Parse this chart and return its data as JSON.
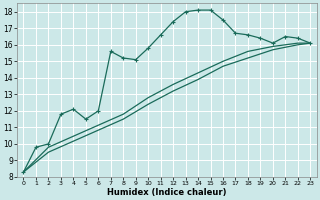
{
  "xlabel": "Humidex (Indice chaleur)",
  "bg_color": "#cce8e8",
  "grid_color": "#b0d8d8",
  "line_color": "#1a6b5a",
  "xlim": [
    -0.5,
    23.5
  ],
  "ylim": [
    8,
    18.5
  ],
  "yticks": [
    8,
    9,
    10,
    11,
    12,
    13,
    14,
    15,
    16,
    17,
    18
  ],
  "xticks": [
    0,
    1,
    2,
    3,
    4,
    5,
    6,
    7,
    8,
    9,
    10,
    11,
    12,
    13,
    14,
    15,
    16,
    17,
    18,
    19,
    20,
    21,
    22,
    23
  ],
  "curve1_x": [
    0,
    1,
    2,
    3,
    4,
    5,
    6,
    7,
    8,
    9,
    10,
    11,
    12,
    13,
    14,
    15,
    16,
    17,
    18,
    19,
    20,
    21,
    22,
    23
  ],
  "curve1_y": [
    8.3,
    9.8,
    10.0,
    11.8,
    12.1,
    11.5,
    12.0,
    15.6,
    15.2,
    15.1,
    15.8,
    16.6,
    17.4,
    18.0,
    18.1,
    18.1,
    17.5,
    16.7,
    16.6,
    16.4,
    16.1,
    16.5,
    16.4,
    16.1
  ],
  "curve2_x": [
    0,
    2,
    5,
    8,
    10,
    12,
    14,
    16,
    18,
    20,
    22,
    23
  ],
  "curve2_y": [
    8.3,
    9.8,
    10.8,
    11.8,
    12.8,
    13.6,
    14.3,
    15.0,
    15.6,
    15.9,
    16.1,
    16.1
  ],
  "curve3_x": [
    0,
    2,
    5,
    8,
    10,
    12,
    14,
    16,
    18,
    20,
    22,
    23
  ],
  "curve3_y": [
    8.3,
    9.5,
    10.5,
    11.5,
    12.4,
    13.2,
    13.9,
    14.7,
    15.2,
    15.7,
    16.0,
    16.1
  ]
}
